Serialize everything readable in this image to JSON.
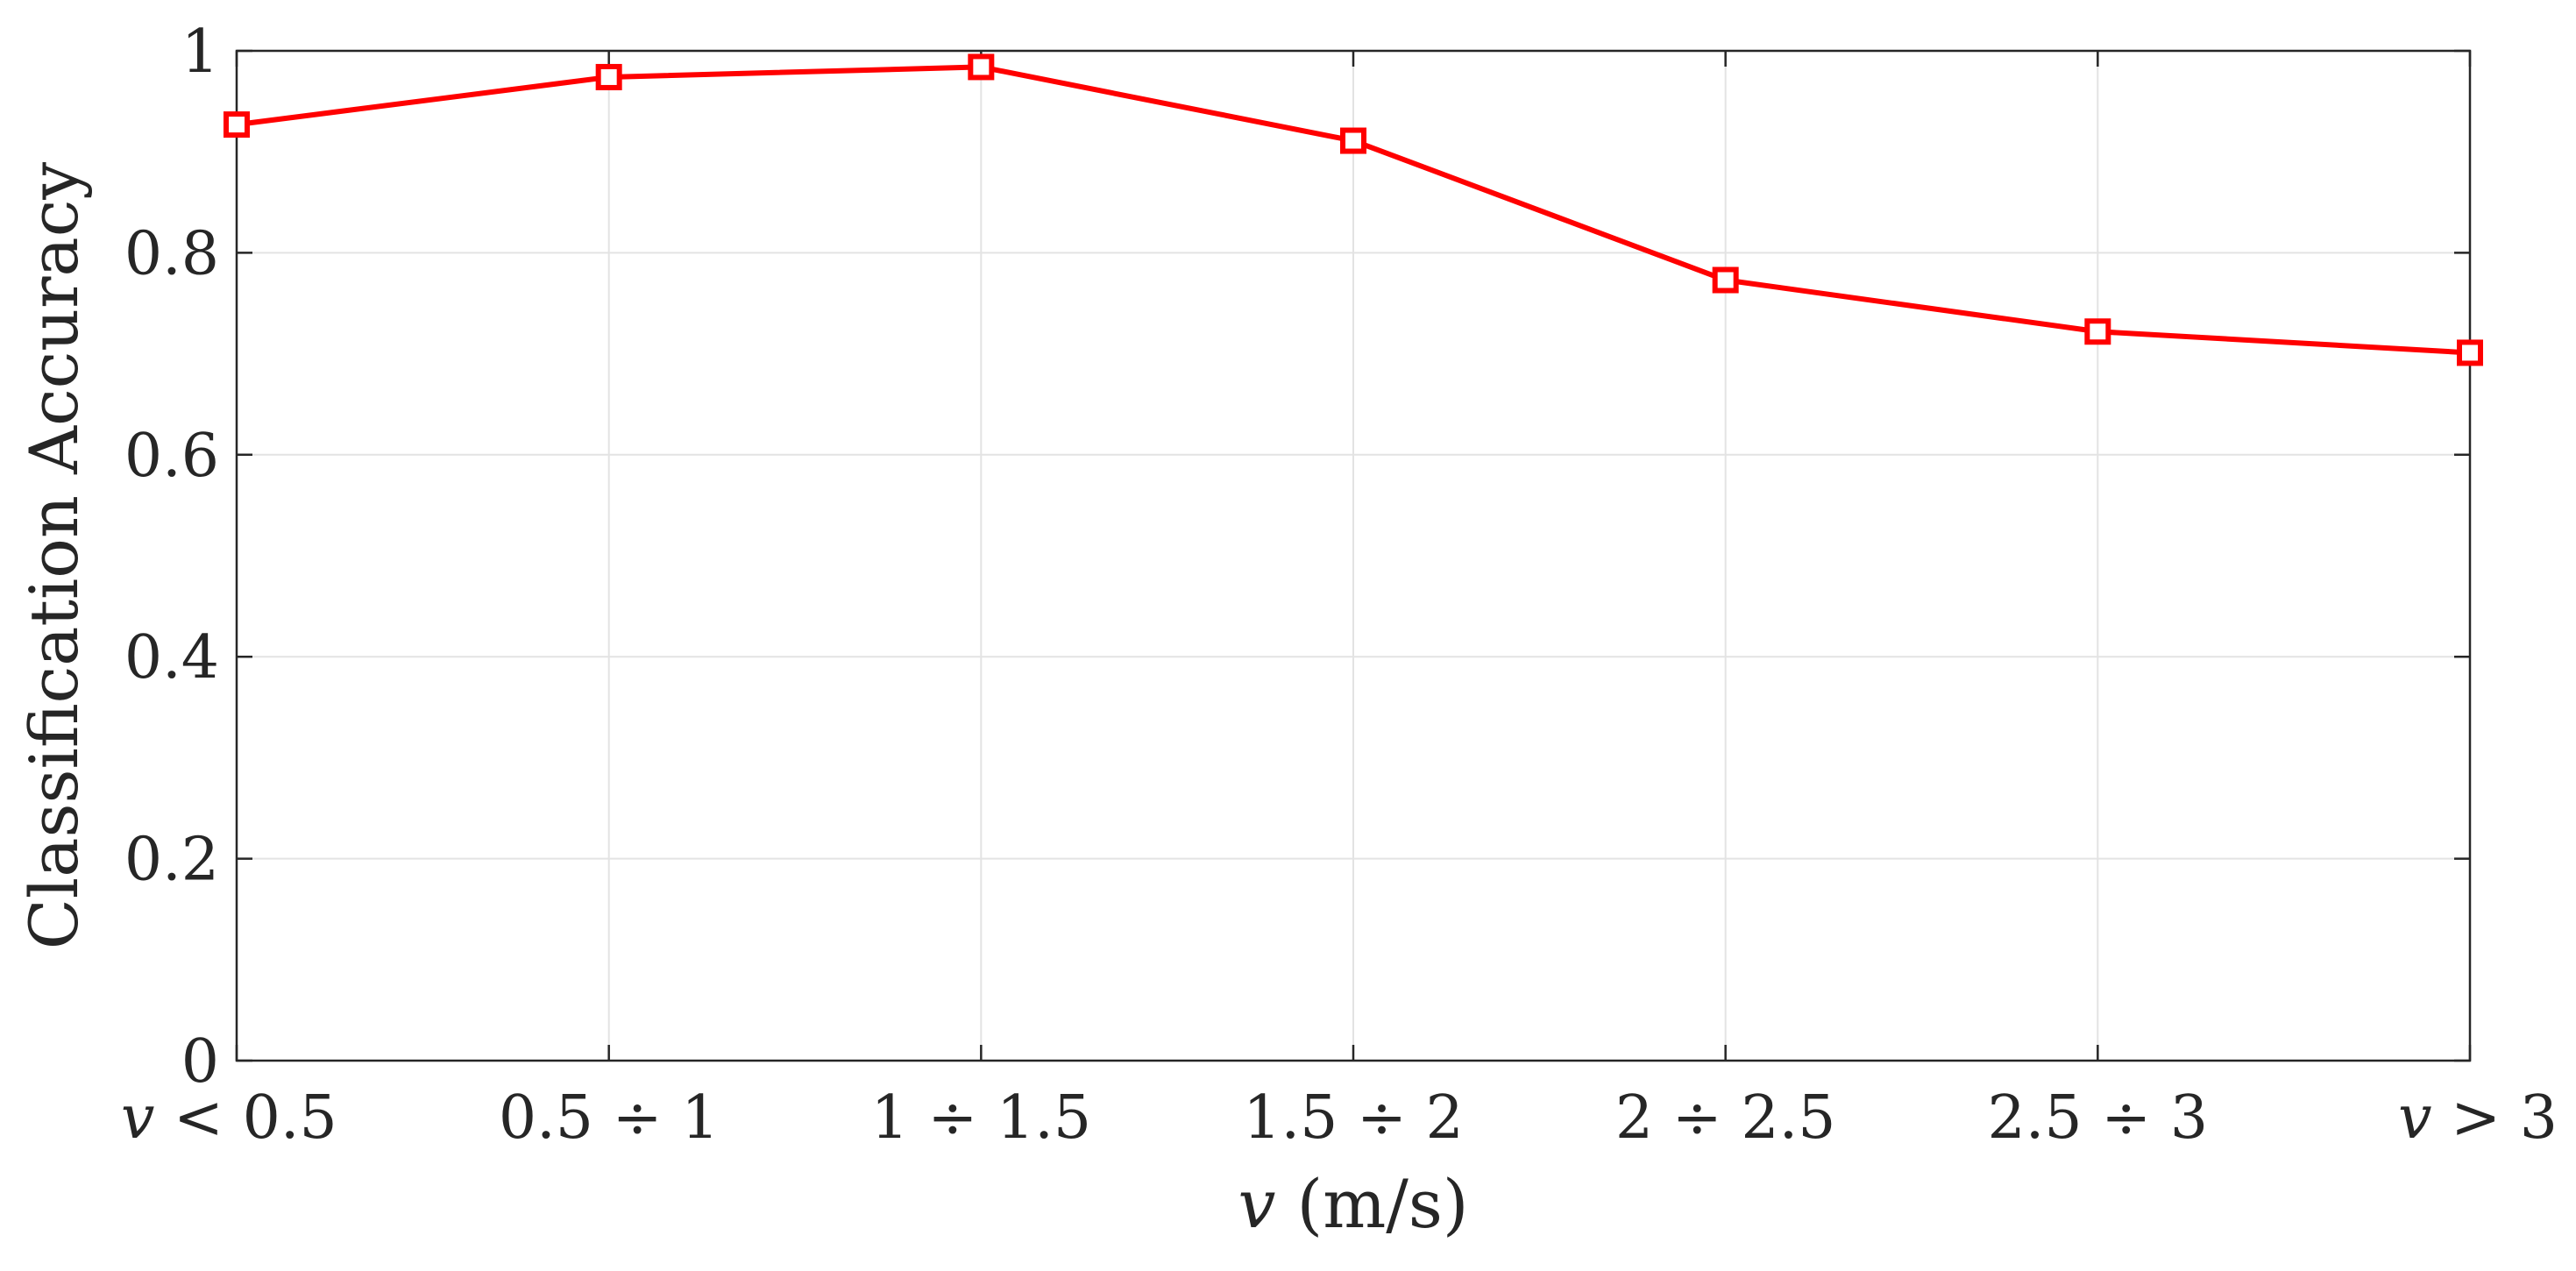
{
  "chart_data": {
    "type": "line",
    "categories": [
      "v < 0.5",
      "0.5 ÷ 1",
      "1 ÷ 1.5",
      "1.5 ÷ 2",
      "2 ÷ 2.5",
      "2.5 ÷ 3",
      "v > 3"
    ],
    "category_parts": [
      {
        "var": "v",
        "text": " < 0.5"
      },
      {
        "var": "",
        "text": "0.5 ÷ 1"
      },
      {
        "var": "",
        "text": "1 ÷ 1.5"
      },
      {
        "var": "",
        "text": "1.5 ÷ 2"
      },
      {
        "var": "",
        "text": "2 ÷ 2.5"
      },
      {
        "var": "",
        "text": "2.5 ÷ 3"
      },
      {
        "var": "v",
        "text": " > 3"
      }
    ],
    "series": [
      {
        "values": [
          0.927,
          0.974,
          0.984,
          0.911,
          0.773,
          0.722,
          0.701
        ],
        "color": "#ff0000",
        "marker": "square"
      }
    ],
    "title": "",
    "xlabel": "v (m/s)",
    "xlabel_var": "v",
    "xlabel_unit": " (m/s)",
    "ylabel": "Classification Accuracy",
    "ylim": [
      0,
      1
    ],
    "yticks": [
      0,
      0.2,
      0.4,
      0.6,
      0.8,
      1
    ],
    "ytick_labels": [
      "0",
      "0.2",
      "0.4",
      "0.6",
      "0.8",
      "1"
    ],
    "grid": true,
    "legend": "none"
  }
}
